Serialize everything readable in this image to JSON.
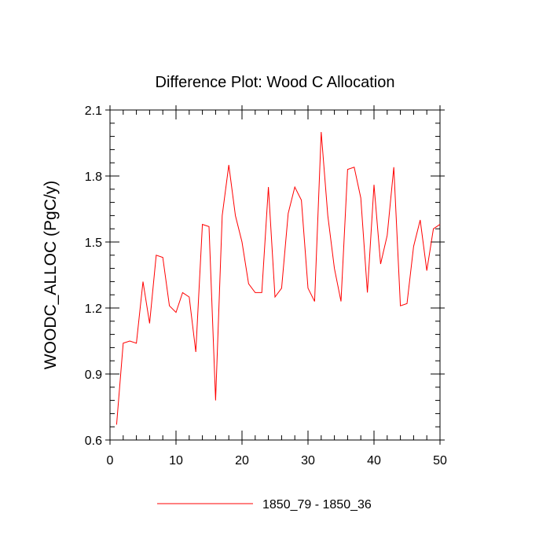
{
  "chart_data": {
    "type": "line",
    "title": "Difference Plot: Wood C Allocation",
    "xlabel": "",
    "ylabel": "WOODC_ALLOC  (PgC/y)",
    "xlim": [
      0,
      50
    ],
    "ylim": [
      0.6,
      2.1
    ],
    "x_ticks": [
      "0",
      "10",
      "20",
      "30",
      "40",
      "50"
    ],
    "y_ticks": [
      "0.6",
      "0.9",
      "1.2",
      "1.5",
      "1.8",
      "2.1"
    ],
    "grid": false,
    "legend_position": "bottom",
    "series": [
      {
        "name": "1850_79 - 1850_36",
        "color": "#ff0000",
        "x": [
          1,
          2,
          3,
          4,
          5,
          6,
          7,
          8,
          9,
          10,
          11,
          12,
          13,
          14,
          15,
          16,
          17,
          18,
          19,
          20,
          21,
          22,
          23,
          24,
          25,
          26,
          27,
          28,
          29,
          30,
          31,
          32,
          33,
          34,
          35,
          36,
          37,
          38,
          39,
          40,
          41,
          42,
          43,
          44,
          45,
          46,
          47,
          48,
          49,
          50
        ],
        "y": [
          0.67,
          1.04,
          1.05,
          1.04,
          1.32,
          1.13,
          1.44,
          1.43,
          1.21,
          1.18,
          1.27,
          1.25,
          1.0,
          1.58,
          1.57,
          0.78,
          1.62,
          1.85,
          1.62,
          1.5,
          1.31,
          1.27,
          1.27,
          1.75,
          1.25,
          1.29,
          1.63,
          1.75,
          1.69,
          1.29,
          1.23,
          2.0,
          1.62,
          1.38,
          1.23,
          1.83,
          1.84,
          1.7,
          1.27,
          1.76,
          1.4,
          1.53,
          1.84,
          1.21,
          1.22,
          1.48,
          1.6,
          1.37,
          1.56,
          1.58
        ]
      }
    ]
  }
}
